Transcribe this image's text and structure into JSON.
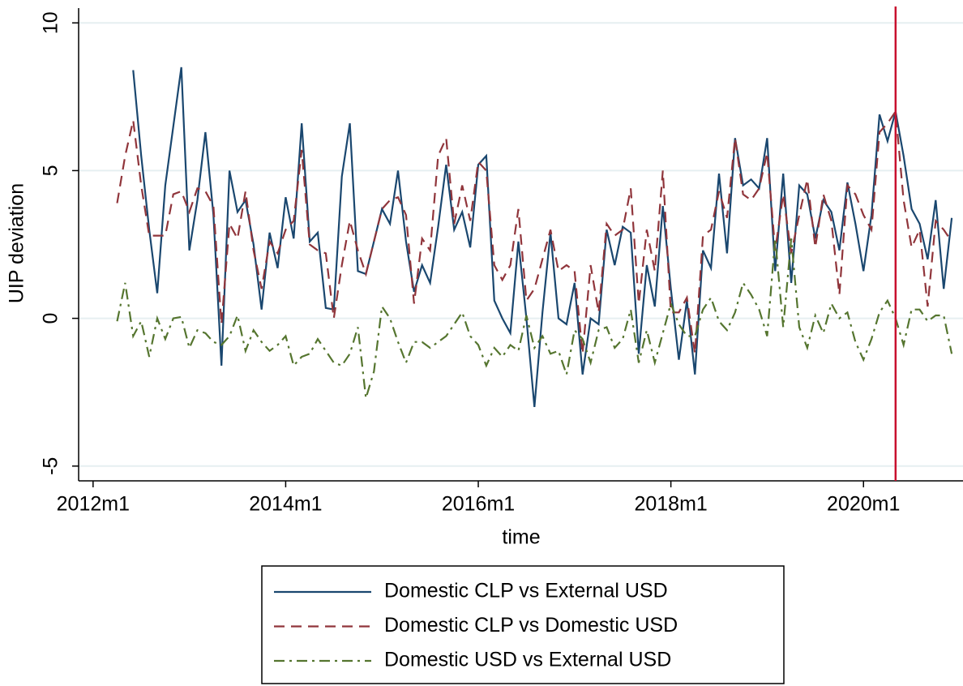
{
  "chart_data": {
    "type": "line",
    "ylabel": "UIP deviation",
    "xlabel": "time",
    "x": [
      627,
      628,
      629,
      630,
      631,
      632,
      633,
      634,
      635,
      636,
      637,
      638,
      639,
      640,
      641,
      642,
      643,
      644,
      645,
      646,
      647,
      648,
      649,
      650,
      651,
      652,
      653,
      654,
      655,
      656,
      657,
      658,
      659,
      660,
      661,
      662,
      663,
      664,
      665,
      666,
      667,
      668,
      669,
      670,
      671,
      672,
      673,
      674,
      675,
      676,
      677,
      678,
      679,
      680,
      681,
      682,
      683,
      684,
      685,
      686,
      687,
      688,
      689,
      690,
      691,
      692,
      693,
      694,
      695,
      696,
      697,
      698,
      699,
      700,
      701,
      702,
      703,
      704,
      705,
      706,
      707,
      708,
      709,
      710,
      711,
      712,
      713,
      714,
      715,
      716,
      717,
      718,
      719,
      720,
      721,
      722,
      723,
      724,
      725,
      726,
      727,
      728,
      729,
      730,
      731
    ],
    "series": [
      {
        "name": "Domestic CLP vs External USD",
        "color": "#1a476f",
        "dash": "none",
        "values": [
          null,
          null,
          8.4,
          5.5,
          3.0,
          0.85,
          4.5,
          6.5,
          8.5,
          2.3,
          4.0,
          6.3,
          3.5,
          -1.6,
          5.0,
          3.6,
          4.0,
          2.5,
          0.3,
          2.9,
          1.7,
          4.1,
          2.7,
          6.6,
          2.6,
          2.9,
          0.35,
          0.3,
          4.8,
          6.6,
          1.6,
          1.5,
          2.6,
          3.7,
          3.2,
          5.0,
          2.6,
          0.9,
          1.8,
          1.2,
          3.1,
          5.2,
          3.0,
          3.6,
          2.4,
          5.2,
          5.5,
          0.6,
          0.0,
          -0.5,
          2.6,
          0.0,
          -3.0,
          0.2,
          2.9,
          0.0,
          -0.2,
          1.2,
          -1.9,
          0.0,
          -0.2,
          3.0,
          1.8,
          3.1,
          2.9,
          -1.2,
          1.8,
          0.4,
          3.8,
          1.0,
          -1.4,
          0.6,
          -1.9,
          2.3,
          1.7,
          4.9,
          2.2,
          6.1,
          4.5,
          4.7,
          4.4,
          6.1,
          1.6,
          4.9,
          1.2,
          4.5,
          4.2,
          2.7,
          4.0,
          3.6,
          2.3,
          4.6,
          3.2,
          1.6,
          3.5,
          6.9,
          6.0,
          7.0,
          5.5,
          3.7,
          3.2,
          2.0,
          4.0,
          1.0,
          3.4
        ]
      },
      {
        "name": "Domestic CLP vs Domestic USD",
        "color": "#90353b",
        "dash": "13 8",
        "values": [
          3.9,
          5.5,
          6.7,
          4.5,
          2.8,
          2.8,
          2.8,
          4.2,
          4.3,
          3.6,
          4.4,
          4.3,
          3.8,
          -0.2,
          3.2,
          2.7,
          4.3,
          2.3,
          1.0,
          2.6,
          2.2,
          3.0,
          3.3,
          5.7,
          2.5,
          2.3,
          2.2,
          0.0,
          1.8,
          3.3,
          2.3,
          1.5,
          2.6,
          3.7,
          4.0,
          4.1,
          3.5,
          0.5,
          2.7,
          2.3,
          5.5,
          6.1,
          3.2,
          4.5,
          3.3,
          5.3,
          5.0,
          1.8,
          1.3,
          1.8,
          3.7,
          0.6,
          1.0,
          2.0,
          3.0,
          1.6,
          1.8,
          1.6,
          -1.2,
          1.8,
          0.2,
          3.2,
          2.8,
          3.0,
          4.4,
          0.5,
          3.0,
          1.6,
          5.0,
          0.2,
          0.2,
          0.7,
          -1.2,
          2.8,
          3.0,
          4.3,
          3.4,
          6.1,
          4.2,
          4.0,
          4.4,
          5.6,
          2.3,
          4.2,
          2.2,
          3.5,
          4.7,
          2.4,
          4.2,
          3.3,
          0.8,
          4.5,
          4.2,
          3.5,
          3.0,
          6.3,
          6.6,
          7.0,
          4.0,
          2.4,
          3.0,
          0.4,
          3.3,
          3.0,
          2.6
        ]
      },
      {
        "name": "Domestic USD vs External USD",
        "color": "#55752f",
        "dash": "13 6 3 6",
        "values": [
          -0.1,
          1.2,
          -0.6,
          -0.1,
          -1.3,
          0.0,
          -0.7,
          0.0,
          0.05,
          -1.0,
          -0.4,
          -0.5,
          -0.8,
          -0.9,
          -0.6,
          0.1,
          -1.1,
          -0.4,
          -0.8,
          -1.1,
          -0.9,
          -0.6,
          -1.6,
          -1.3,
          -1.2,
          -0.7,
          -1.1,
          -1.5,
          -1.6,
          -1.2,
          -0.3,
          -2.7,
          -1.8,
          0.4,
          0.0,
          -0.8,
          -1.5,
          -0.8,
          -0.8,
          -1.0,
          -0.8,
          -0.6,
          -0.2,
          0.2,
          -0.6,
          -0.9,
          -1.6,
          -1.0,
          -1.3,
          -0.9,
          -1.1,
          0.1,
          -1.0,
          -0.6,
          -1.2,
          -1.1,
          -1.9,
          -0.4,
          -0.7,
          -1.5,
          -0.4,
          -0.3,
          -1.0,
          -0.7,
          0.3,
          -1.5,
          -0.4,
          -1.5,
          -0.5,
          0.5,
          -0.2,
          -0.6,
          -0.6,
          0.3,
          0.7,
          -0.1,
          -0.4,
          0.2,
          1.2,
          0.8,
          0.3,
          -0.6,
          2.7,
          -0.3,
          2.7,
          -0.3,
          -1.0,
          0.1,
          -0.5,
          0.5,
          0.0,
          0.2,
          -0.8,
          -1.4,
          -0.7,
          0.2,
          0.6,
          0.0,
          -0.9,
          0.3,
          0.3,
          -0.1,
          0.1,
          0.1,
          -1.2
        ]
      }
    ],
    "xlim": [
      622.2,
      732.4
    ],
    "ylim": [
      -5.5,
      10.5
    ],
    "xticks": [
      {
        "value": 624,
        "label": "2012m1"
      },
      {
        "value": 648,
        "label": "2014m1"
      },
      {
        "value": 672,
        "label": "2016m1"
      },
      {
        "value": 696,
        "label": "2018m1"
      },
      {
        "value": 720,
        "label": "2020m1"
      }
    ],
    "yticks": [
      -5,
      0,
      5,
      10
    ],
    "grid": true,
    "reference_line": {
      "x": 724,
      "color": "#c8102e"
    },
    "legend": "bottom"
  }
}
